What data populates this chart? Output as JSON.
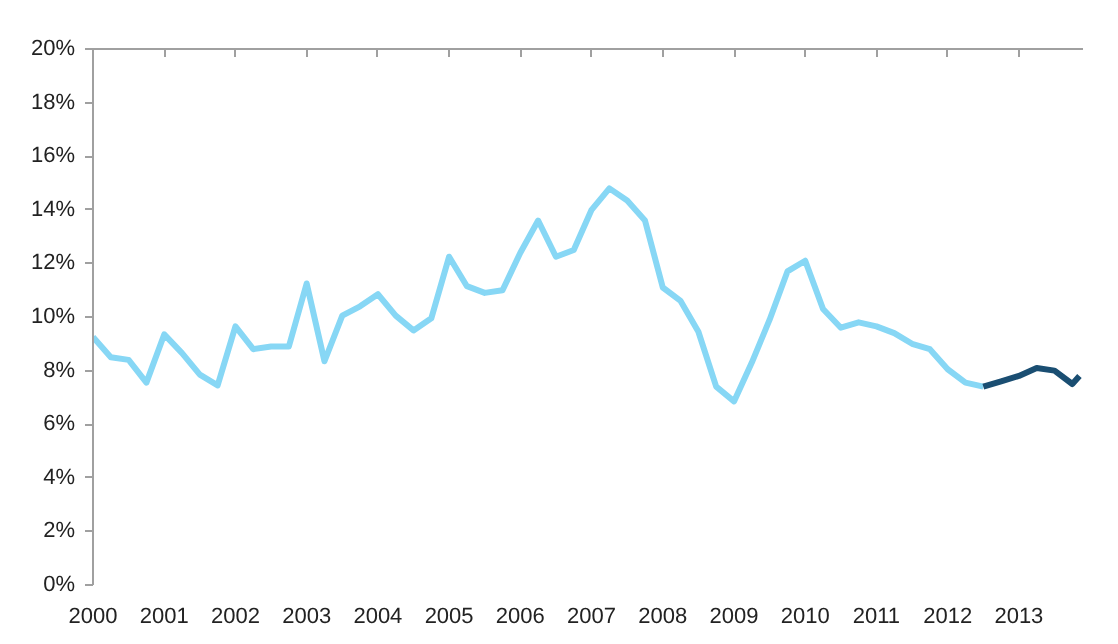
{
  "chart_data": {
    "type": "line",
    "xlim": [
      2000,
      2013.9
    ],
    "xticks": [
      2000,
      2001,
      2002,
      2003,
      2004,
      2005,
      2006,
      2007,
      2008,
      2009,
      2010,
      2011,
      2012,
      2013
    ],
    "ylim": [
      0,
      20
    ],
    "yticks": [
      {
        "value": 0,
        "label": "0%"
      },
      {
        "value": 2,
        "label": "2%"
      },
      {
        "value": 4,
        "label": "4%"
      },
      {
        "value": 6,
        "label": "6%"
      },
      {
        "value": 8,
        "label": "8%"
      },
      {
        "value": 10,
        "label": "10%"
      },
      {
        "value": 12,
        "label": "12%"
      },
      {
        "value": 14,
        "label": "14%"
      },
      {
        "value": 16,
        "label": "16%"
      },
      {
        "value": 18,
        "label": "18%"
      },
      {
        "value": 20,
        "label": "20%"
      }
    ],
    "grid": false,
    "series": [
      {
        "color": "#87d7f5",
        "x": [
          2000,
          2000.25,
          2000.5,
          2000.75,
          2001,
          2001.25,
          2001.5,
          2001.75,
          2002,
          2002.25,
          2002.5,
          2002.75,
          2003,
          2003.25,
          2003.5,
          2003.75,
          2004,
          2004.25,
          2004.5,
          2004.75,
          2005,
          2005.25,
          2005.5,
          2005.75,
          2006,
          2006.25,
          2006.5,
          2006.75,
          2007,
          2007.25,
          2007.5,
          2007.75,
          2008,
          2008.25,
          2008.5,
          2008.75,
          2009,
          2009.25,
          2009.5,
          2009.75,
          2010,
          2010.25,
          2010.5,
          2010.75,
          2011,
          2011.25,
          2011.5,
          2011.75,
          2012,
          2012.25,
          2012.5
        ],
        "values": [
          9.25,
          8.5,
          8.4,
          7.55,
          9.35,
          8.65,
          7.85,
          7.45,
          9.65,
          8.8,
          8.9,
          8.9,
          11.25,
          8.35,
          10.05,
          10.4,
          10.85,
          10.05,
          9.5,
          9.95,
          12.25,
          11.15,
          10.9,
          11.0,
          12.4,
          13.6,
          12.25,
          12.5,
          14.0,
          14.8,
          14.35,
          13.6,
          11.1,
          10.6,
          9.45,
          7.4,
          6.85,
          8.3,
          9.9,
          11.7,
          12.1,
          10.3,
          9.6,
          9.8,
          9.65,
          9.4,
          9.0,
          8.8,
          8.05,
          7.55,
          7.4
        ]
      },
      {
        "color": "#1a4e72",
        "x": [
          2012.5,
          2012.75,
          2013,
          2013.25,
          2013.5,
          2013.75,
          2013.85
        ],
        "values": [
          7.4,
          7.6,
          7.8,
          8.1,
          8.0,
          7.5,
          7.8
        ]
      }
    ]
  }
}
